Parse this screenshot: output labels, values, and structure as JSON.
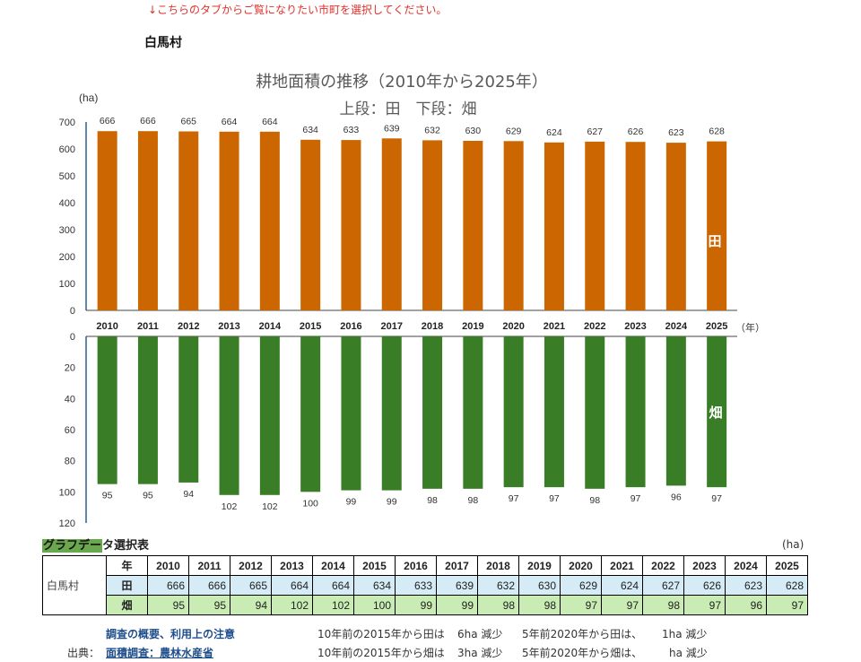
{
  "notice": "↓こちらのタブからご覧になりたい市町を選択してください。",
  "municipality": "白馬村",
  "chart_data": {
    "type": "bar",
    "title": "耕地面積の推移（2010年から2025年）",
    "subtitle": "上段：田　下段：畑",
    "categories": [
      "2010",
      "2011",
      "2012",
      "2013",
      "2014",
      "2015",
      "2016",
      "2017",
      "2018",
      "2019",
      "2020",
      "2021",
      "2022",
      "2023",
      "2024",
      "2025"
    ],
    "series": [
      {
        "name": "田",
        "color": "#cc6600",
        "values": [
          666,
          666,
          665,
          664,
          664,
          634,
          633,
          639,
          632,
          630,
          629,
          624,
          627,
          626,
          623,
          628
        ]
      },
      {
        "name": "畑",
        "color": "#3a7d27",
        "values": [
          95,
          95,
          94,
          102,
          102,
          100,
          99,
          99,
          98,
          98,
          97,
          97,
          98,
          97,
          96,
          97
        ]
      }
    ],
    "ylabel": "(ha)",
    "xlabel": "（年）",
    "top_ylim": [
      0,
      700
    ],
    "top_ticks": [
      "0",
      "100",
      "200",
      "300",
      "400",
      "500",
      "600",
      "700"
    ],
    "bottom_ylim": [
      0,
      120
    ],
    "bottom_ticks": [
      "0",
      "20",
      "40",
      "60",
      "80",
      "100",
      "120"
    ],
    "bottom_inverted": true
  },
  "table": {
    "label_green": "グラフデー",
    "label_rest": "タ選択表",
    "unit": "(ha)",
    "year_header": "年",
    "rice_label": "田",
    "field_label": "畑",
    "muni": "白馬村"
  },
  "footer": {
    "overview_link": "調査の概要、利用上の注意",
    "source_label": "出典：",
    "source_link": "面積調査：農林水産省",
    "rice_10y": "10年前の2015年から田は",
    "rice_10y_val": "6ha 減少",
    "rice_5y": "5年前2020年から田は、",
    "rice_5y_val": "1ha 減少",
    "field_10y": "10年前の2015年から畑は",
    "field_10y_val": "3ha 減少",
    "field_5y": "5年前2020年から畑は、",
    "field_5y_val": "ha 減少"
  }
}
